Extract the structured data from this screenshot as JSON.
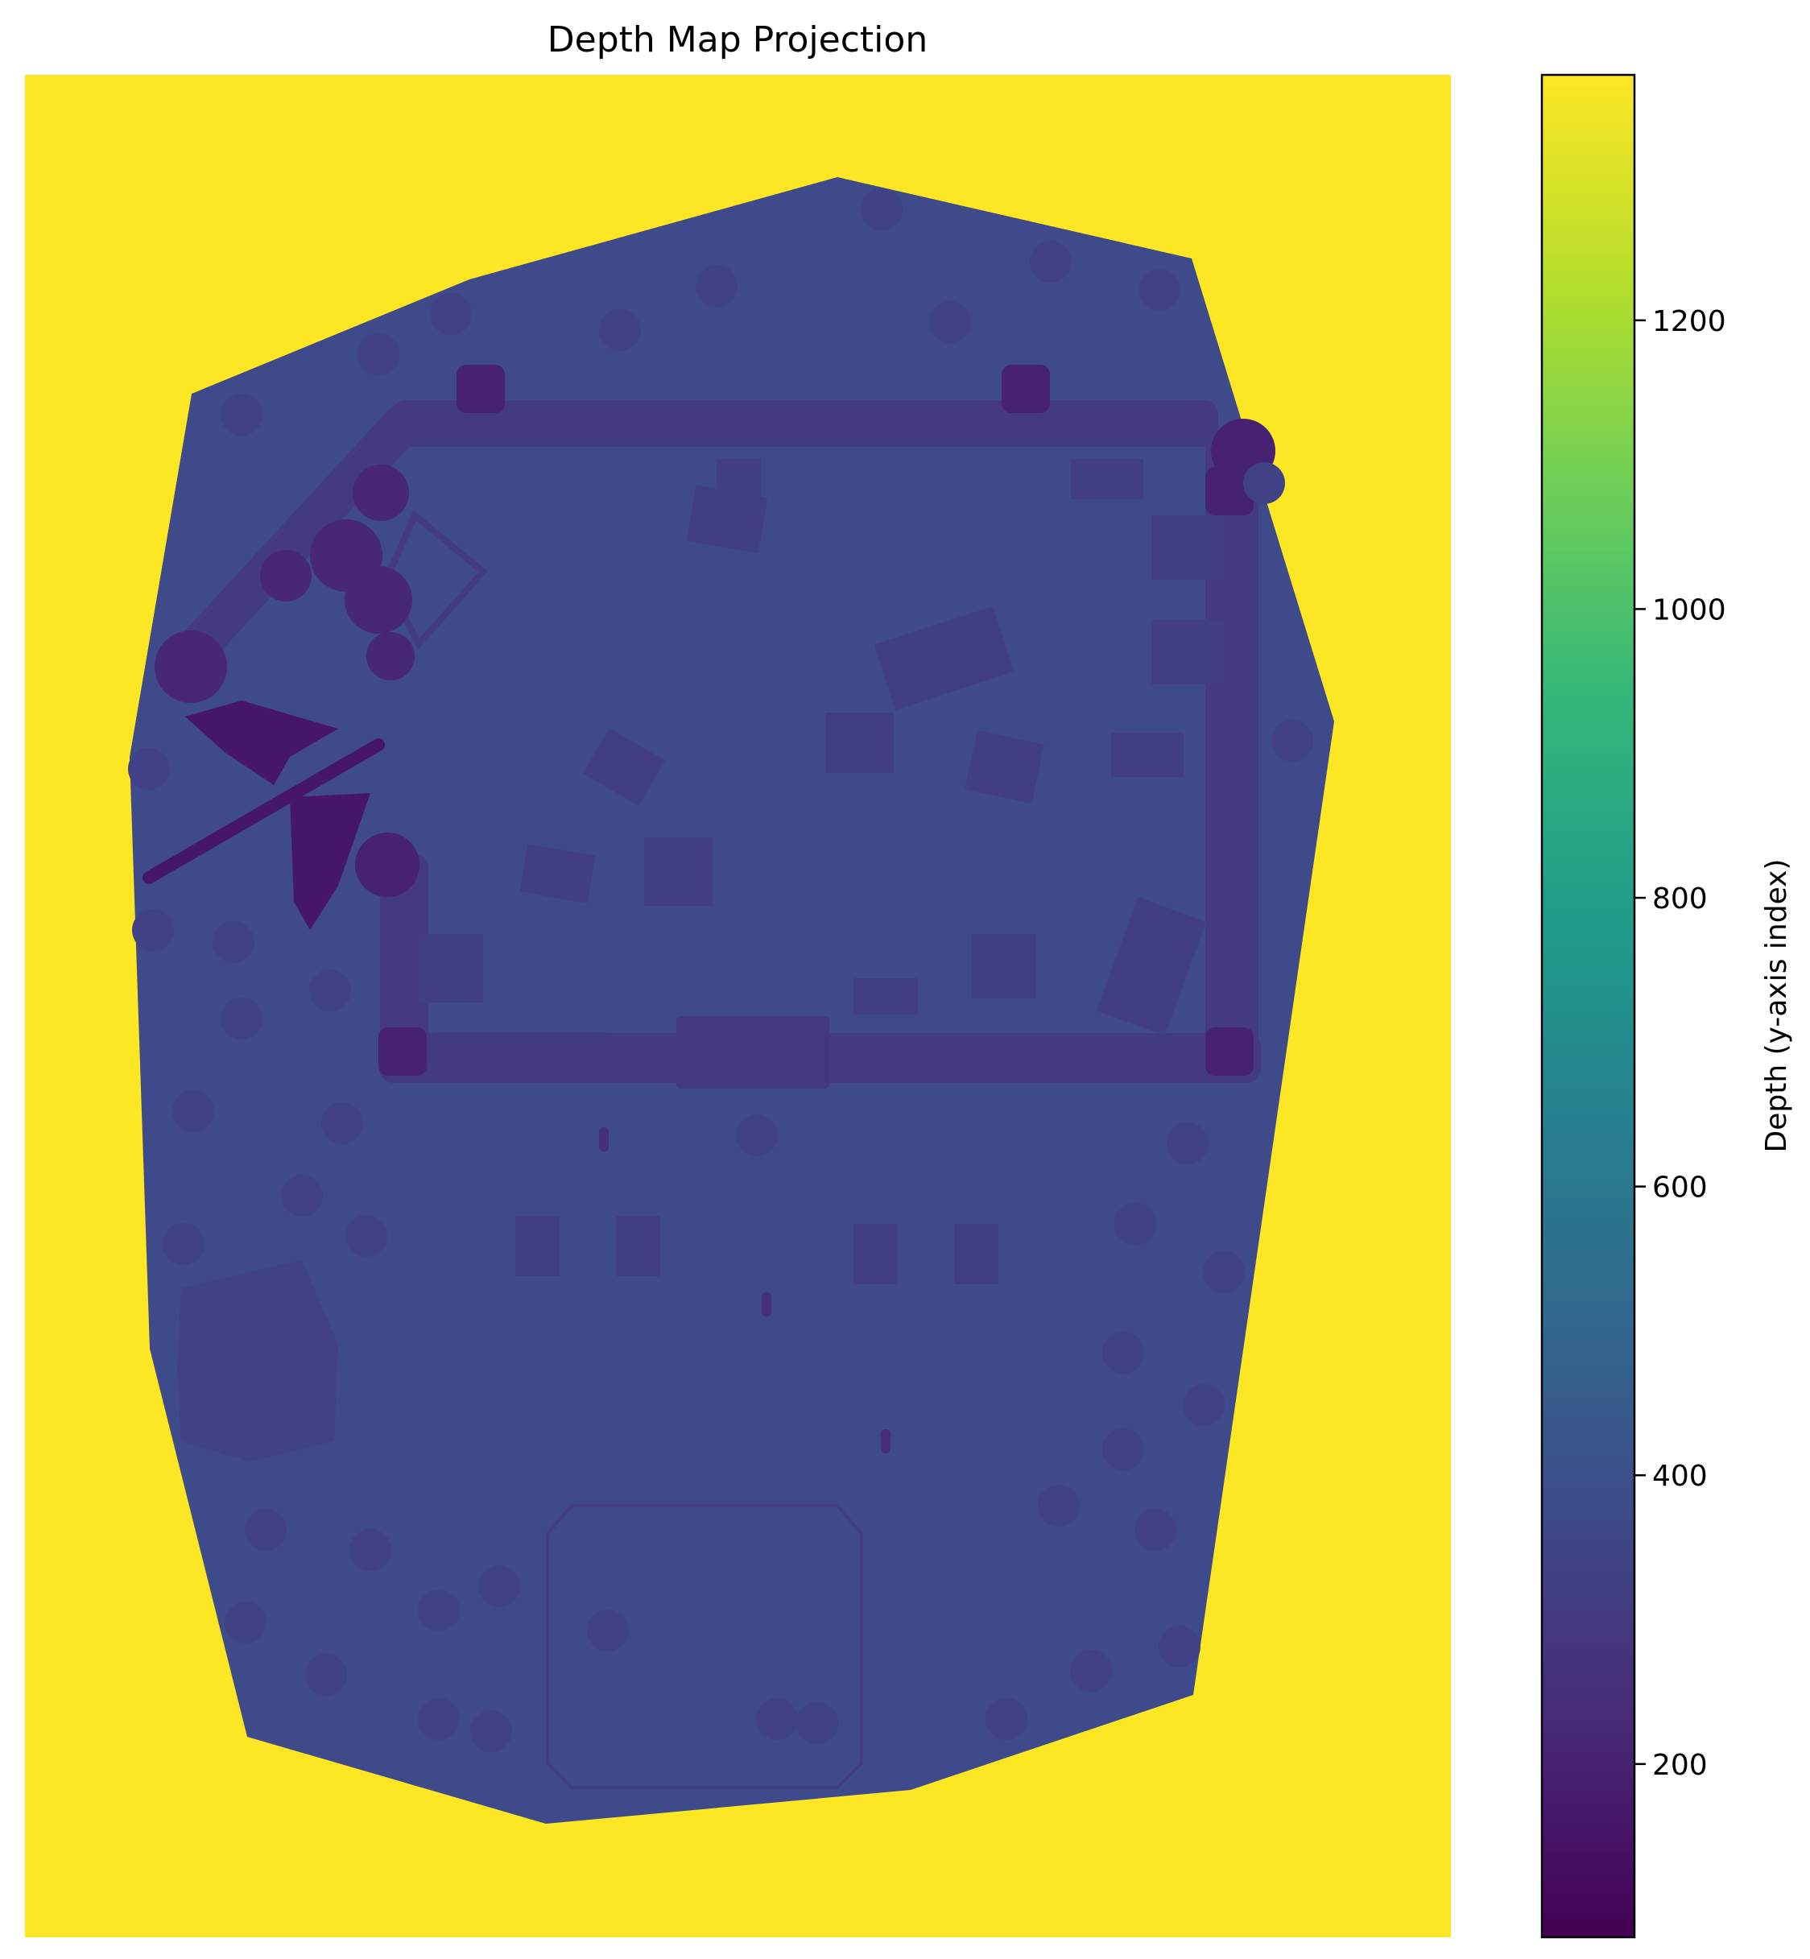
{
  "chart_data": {
    "type": "heatmap",
    "title": "Depth Map Projection",
    "xlabel": "",
    "ylabel": "",
    "axes_visible": false,
    "colormap": "viridis",
    "background_value": 1370,
    "scene_base_value": 370,
    "colorbar": {
      "label": "Depth (y-axis index)",
      "range": [
        80,
        1370
      ],
      "ticks": [
        200,
        400,
        600,
        800,
        1000,
        1200
      ],
      "tick_labels": [
        "200",
        "400",
        "600",
        "800",
        "1000",
        "1200"
      ]
    },
    "regions": [
      {
        "name": "scene footprint",
        "value": 370
      },
      {
        "name": "wall ring",
        "value": 300
      },
      {
        "name": "north-west tower cluster",
        "value": 220
      },
      {
        "name": "winged creature",
        "value": 160
      },
      {
        "name": "corner towers",
        "value": 200
      },
      {
        "name": "south gate",
        "value": 290
      },
      {
        "name": "buildings",
        "value": 320
      },
      {
        "name": "trees",
        "value": 330
      },
      {
        "name": "statues",
        "value": 250
      }
    ]
  },
  "colors": {
    "viridis_stops": [
      "#440154",
      "#482878",
      "#3e4989",
      "#31688e",
      "#26828e",
      "#1f9e89",
      "#35b779",
      "#6ece58",
      "#b5de2b",
      "#fde725"
    ],
    "frame": "#000000",
    "background": "#ffffff"
  }
}
